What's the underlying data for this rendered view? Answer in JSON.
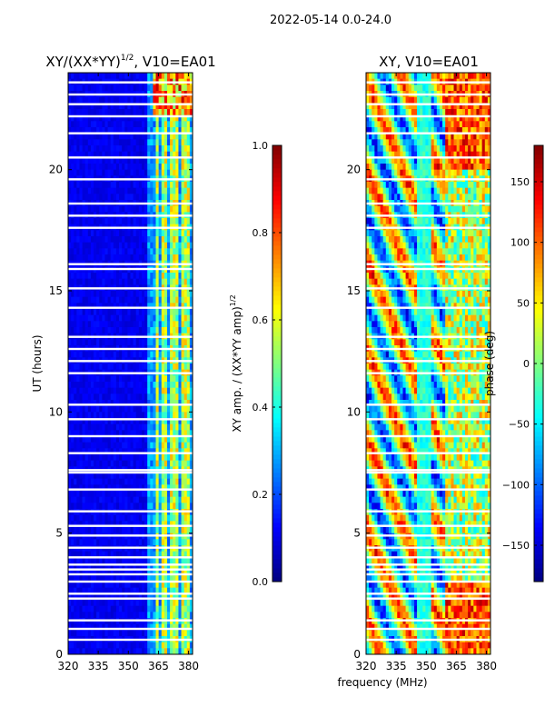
{
  "figure_title": "2022-05-14 0.0-24.0",
  "colors": {
    "white": "#ffffff",
    "black": "#000000"
  },
  "chart_data": [
    {
      "type": "heatmap",
      "id": "amp",
      "title": "XY/(XX*YY)",
      "title_sup": "1/2",
      "title_suffix": ", V10=EA01",
      "xlabel": "",
      "ylabel": "UT (hours)",
      "xlim": [
        320,
        382
      ],
      "ylim": [
        0,
        24
      ],
      "xticks": [
        320,
        335,
        350,
        365,
        380
      ],
      "yticks": [
        0,
        5,
        10,
        15,
        20
      ],
      "band_start_mhz": 360,
      "active_channels_mhz": [
        364,
        367,
        369,
        372,
        374,
        377,
        379
      ],
      "colorbar": {
        "label": "XY amp. / (XX*YY amp)",
        "label_sup": "1/2",
        "range": [
          0.0,
          1.0
        ],
        "ticks": [
          "0.0",
          "0.2",
          "0.4",
          "0.6",
          "0.8",
          "1.0"
        ],
        "colormap": "jet"
      },
      "gaps_hours": [
        0.6,
        1.05,
        1.4,
        2.3,
        2.5,
        3.0,
        3.3,
        3.5,
        3.7,
        4.0,
        4.4,
        4.9,
        5.3,
        5.9,
        6.8,
        7.5,
        7.6,
        8.3,
        9.0,
        9.7,
        10.3,
        11.6,
        12.1,
        12.6,
        13.1,
        14.3,
        15.1,
        15.9,
        16.1,
        17.6,
        18.1,
        18.6,
        19.6,
        20.5,
        21.5,
        22.2,
        22.7,
        23.1,
        23.6
      ]
    },
    {
      "type": "heatmap",
      "id": "phase",
      "title": "XY, V10=EA01",
      "xlabel": "frequency (MHz)",
      "ylabel": "",
      "xlim": [
        320,
        382
      ],
      "ylim": [
        0,
        24
      ],
      "xticks": [
        320,
        335,
        350,
        365,
        380
      ],
      "yticks": [
        0,
        5,
        10,
        15,
        20
      ],
      "colorbar": {
        "label": "phase (deg)",
        "range": [
          -180,
          180
        ],
        "ticks": [
          "-150",
          "-100",
          "-50",
          "0",
          "50",
          "100",
          "150"
        ],
        "colormap": "jet"
      },
      "gaps_hours": [
        0.6,
        1.05,
        1.4,
        2.3,
        2.5,
        3.0,
        3.3,
        3.5,
        3.7,
        4.0,
        4.4,
        4.9,
        5.3,
        5.9,
        6.8,
        7.5,
        7.6,
        8.3,
        9.0,
        9.7,
        10.3,
        11.6,
        12.1,
        12.6,
        13.1,
        14.3,
        15.1,
        15.9,
        16.1,
        17.6,
        18.1,
        18.6,
        19.6,
        20.5,
        21.5,
        22.2,
        22.7,
        23.1,
        23.6
      ]
    }
  ]
}
